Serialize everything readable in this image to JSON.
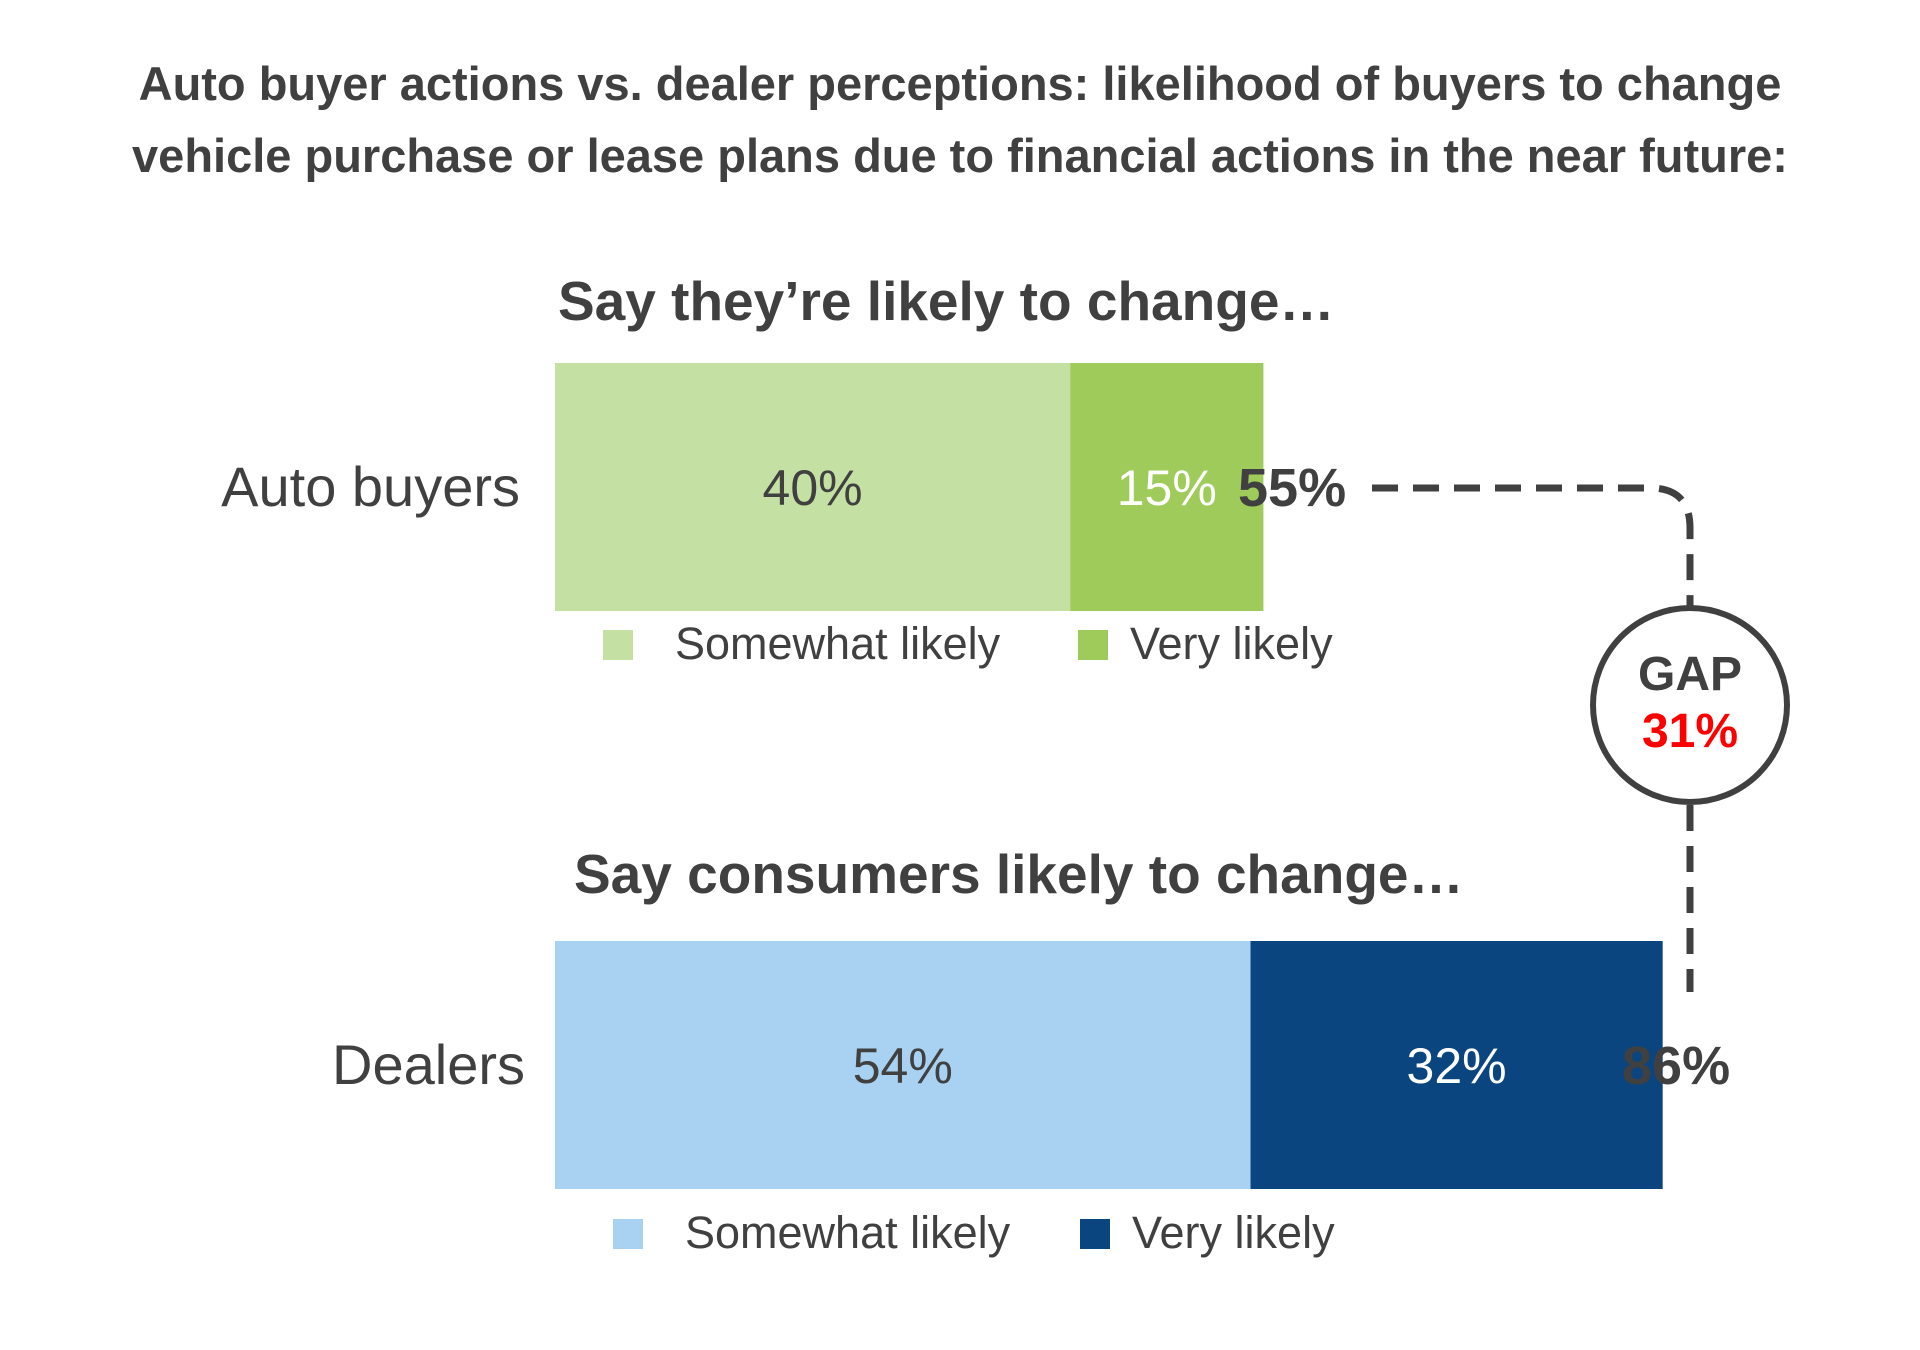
{
  "title": {
    "line1": "Auto buyer actions vs. dealer perceptions: likelihood of buyers to change",
    "line2": "vehicle purchase or lease plans due to financial actions in the near future:"
  },
  "chart_data": {
    "type": "bar",
    "orientation": "horizontal",
    "stacked": true,
    "groups": [
      {
        "heading": "Say they’re likely to change…",
        "category": "Auto buyers",
        "segments": [
          {
            "name": "Somewhat likely",
            "value": 40,
            "label": "40%",
            "color": "#c5e0a3",
            "text_color": "#404040"
          },
          {
            "name": "Very likely",
            "value": 15,
            "label": "15%",
            "color": "#9fcb5a",
            "text_color": "#ffffff"
          }
        ],
        "total_label": "55%"
      },
      {
        "heading": "Say consumers likely to change…",
        "category": "Dealers",
        "segments": [
          {
            "name": "Somewhat likely",
            "value": 54,
            "label": "54%",
            "color": "#a9d2f2",
            "text_color": "#404040"
          },
          {
            "name": "Very likely",
            "value": 32,
            "label": "32%",
            "color": "#0a4580",
            "text_color": "#ffffff"
          }
        ],
        "total_label": "86%"
      }
    ],
    "gap": {
      "label": "GAP",
      "value": "31%",
      "value_color": "#ff0000"
    },
    "xlim": [
      0,
      100
    ],
    "grid": false
  }
}
